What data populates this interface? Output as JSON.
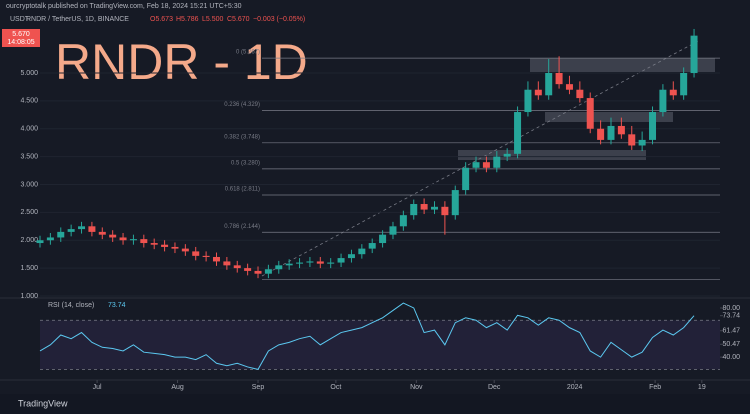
{
  "header": {
    "published": "ourcryptotalk published on TradingView.com, Feb 18, 2024 15:21 UTC+5:30",
    "symbol_line": "RNDR / TetherUS, 1D, BINANCE",
    "open": "O5.673",
    "high": "H5.786",
    "low": "L5.500",
    "close": "C5.670",
    "change": "−0.003 (−0.05%)",
    "currency": "USDT",
    "last_price_label": "5.670",
    "countdown": "14:08:05"
  },
  "footer": {
    "brand": "TradingView"
  },
  "chart_data": [
    {
      "type": "candlestick",
      "title": "RNDR - 1D",
      "x": [
        0,
        4,
        8,
        12,
        16,
        20,
        24,
        28,
        32,
        36,
        40,
        44,
        48,
        52,
        56,
        60,
        64,
        68,
        72,
        76,
        80,
        84,
        88,
        92,
        96,
        100,
        104,
        108,
        112,
        116,
        120,
        124,
        128,
        132,
        136,
        140,
        144,
        148,
        152,
        156,
        160,
        164,
        168,
        172,
        176,
        180,
        184,
        188,
        192,
        196,
        200,
        204,
        208,
        212,
        216,
        220,
        224,
        228,
        232,
        236,
        240,
        244,
        248,
        252
      ],
      "open": [
        1.95,
        2.0,
        2.05,
        2.15,
        2.2,
        2.25,
        2.15,
        2.1,
        2.05,
        2.0,
        2.02,
        1.95,
        1.92,
        1.88,
        1.85,
        1.8,
        1.72,
        1.7,
        1.62,
        1.55,
        1.5,
        1.45,
        1.4,
        1.48,
        1.55,
        1.58,
        1.6,
        1.62,
        1.58,
        1.6,
        1.68,
        1.75,
        1.85,
        1.95,
        2.1,
        2.25,
        2.45,
        2.65,
        2.55,
        2.6,
        2.45,
        2.9,
        3.3,
        3.4,
        3.3,
        3.5,
        3.55,
        4.3,
        4.7,
        4.6,
        5.0,
        4.8,
        4.7,
        4.55,
        4.0,
        3.8,
        4.05,
        3.9,
        3.7,
        3.8,
        4.3,
        4.7,
        4.6,
        5.0
      ],
      "high": [
        2.08,
        2.13,
        2.23,
        2.28,
        2.33,
        2.33,
        2.23,
        2.18,
        2.13,
        2.1,
        2.1,
        2.03,
        2.0,
        1.96,
        1.93,
        1.88,
        1.8,
        1.78,
        1.7,
        1.63,
        1.58,
        1.53,
        1.56,
        1.63,
        1.66,
        1.68,
        1.7,
        1.7,
        1.68,
        1.76,
        1.83,
        1.93,
        2.03,
        2.18,
        2.33,
        2.53,
        2.73,
        2.75,
        2.7,
        2.7,
        2.98,
        3.4,
        3.5,
        3.5,
        3.6,
        3.65,
        4.4,
        4.85,
        4.85,
        5.25,
        5.3,
        4.95,
        4.85,
        4.65,
        4.15,
        4.2,
        4.2,
        4.05,
        3.95,
        4.4,
        4.8,
        4.85,
        5.1,
        5.79
      ],
      "low": [
        1.87,
        1.92,
        1.97,
        2.07,
        2.12,
        2.07,
        2.02,
        1.97,
        1.92,
        1.92,
        1.87,
        1.84,
        1.8,
        1.77,
        1.72,
        1.64,
        1.62,
        1.54,
        1.47,
        1.42,
        1.37,
        1.32,
        1.32,
        1.4,
        1.47,
        1.5,
        1.52,
        1.5,
        1.5,
        1.52,
        1.6,
        1.67,
        1.77,
        1.87,
        2.02,
        2.17,
        2.37,
        2.47,
        2.47,
        2.1,
        2.37,
        2.82,
        3.22,
        3.22,
        3.22,
        3.42,
        3.47,
        4.22,
        4.52,
        4.52,
        4.72,
        4.62,
        4.47,
        3.92,
        3.72,
        3.72,
        3.82,
        3.62,
        3.6,
        3.72,
        4.22,
        4.52,
        4.52,
        4.92
      ],
      "close": [
        2.0,
        2.05,
        2.15,
        2.2,
        2.25,
        2.15,
        2.1,
        2.05,
        2.0,
        2.02,
        1.95,
        1.92,
        1.88,
        1.85,
        1.8,
        1.72,
        1.7,
        1.62,
        1.55,
        1.5,
        1.45,
        1.4,
        1.48,
        1.55,
        1.58,
        1.6,
        1.62,
        1.58,
        1.6,
        1.68,
        1.75,
        1.85,
        1.95,
        2.1,
        2.25,
        2.45,
        2.65,
        2.55,
        2.6,
        2.45,
        2.9,
        3.3,
        3.4,
        3.3,
        3.5,
        3.55,
        4.3,
        4.7,
        4.6,
        5.0,
        4.8,
        4.7,
        4.55,
        4.0,
        3.8,
        4.05,
        3.9,
        3.7,
        3.8,
        4.3,
        4.7,
        4.6,
        5.0,
        5.67
      ],
      "up_color": "#26a69a",
      "down_color": "#ef5350",
      "fib_levels": [
        5.267,
        4.329,
        3.748,
        3.28,
        2.811,
        2.144,
        1.293
      ],
      "fib_labels": [
        "0 (5.267)",
        "0.236 (4.329)",
        "0.382 (3.748)",
        "0.5 (3.280)",
        "0.618 (2.811)",
        "0.786 (2.144)",
        null
      ],
      "xlim": [
        0,
        262
      ],
      "ylim": [
        1.0,
        5.8
      ],
      "yticks": [
        {
          "value": 1.0,
          "label": "1.000"
        },
        {
          "value": 1.5,
          "label": "1.500"
        },
        {
          "value": 2.0,
          "label": "2.000"
        },
        {
          "value": 2.5,
          "label": "2.500"
        },
        {
          "value": 3.0,
          "label": "3.000"
        },
        {
          "value": 3.5,
          "label": "3.500"
        },
        {
          "value": 4.0,
          "label": "4.000"
        },
        {
          "value": 4.5,
          "label": "4.500"
        },
        {
          "value": 5.0,
          "label": "5.000"
        }
      ],
      "xticks": [
        {
          "value": 22,
          "label": "Jul"
        },
        {
          "value": 53,
          "label": "Aug"
        },
        {
          "value": 84,
          "label": "Sep"
        },
        {
          "value": 114,
          "label": "Oct"
        },
        {
          "value": 145,
          "label": "Nov"
        },
        {
          "value": 175,
          "label": "Dec"
        },
        {
          "value": 206,
          "label": "2024"
        },
        {
          "value": 237,
          "label": "Feb"
        },
        {
          "value": 255,
          "label": "19"
        }
      ]
    },
    {
      "type": "line",
      "title": "RSI (14, close)",
      "value_label": "73.74",
      "x": [
        0,
        4,
        8,
        12,
        16,
        20,
        24,
        28,
        32,
        36,
        40,
        44,
        48,
        52,
        56,
        60,
        64,
        68,
        72,
        76,
        80,
        84,
        88,
        92,
        96,
        100,
        104,
        108,
        112,
        116,
        120,
        124,
        128,
        132,
        136,
        140,
        144,
        148,
        152,
        156,
        160,
        164,
        168,
        172,
        176,
        180,
        184,
        188,
        192,
        196,
        200,
        204,
        208,
        212,
        216,
        220,
        224,
        228,
        232,
        236,
        240,
        244,
        248,
        252
      ],
      "series": [
        {
          "name": "RSI",
          "color": "#5bc8f0",
          "values": [
            45,
            50,
            58,
            55,
            60,
            52,
            48,
            47,
            45,
            50,
            44,
            43,
            42,
            40,
            40,
            38,
            42,
            35,
            33,
            35,
            32,
            30,
            45,
            50,
            52,
            55,
            57,
            50,
            55,
            60,
            62,
            64,
            68,
            72,
            78,
            84,
            80,
            60,
            62,
            50,
            68,
            72,
            70,
            64,
            68,
            62,
            74,
            72,
            66,
            72,
            70,
            64,
            60,
            45,
            40,
            52,
            46,
            40,
            44,
            56,
            62,
            58,
            64,
            73.74
          ]
        }
      ],
      "band": [
        30,
        70
      ],
      "xlim": [
        0,
        262
      ],
      "ylim": [
        23,
        86.5
      ],
      "yticks": [
        {
          "value": 40,
          "label": "40.00"
        },
        {
          "value": 50.47,
          "label": "50.47"
        },
        {
          "value": 61.47,
          "label": "61.47"
        },
        {
          "value": 73.74,
          "label": "73.74"
        },
        {
          "value": 80,
          "label": "80.00"
        }
      ]
    }
  ]
}
